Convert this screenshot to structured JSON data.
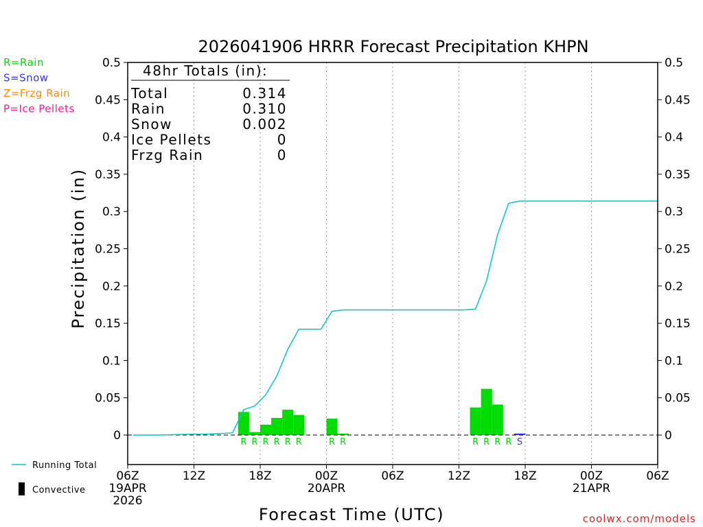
{
  "chart_data": {
    "type": "bar",
    "title": "2026041906 HRRR Forecast Precipitation KHPN",
    "ylabel": "Precipitation (in)",
    "xlabel": "Forecast Time (UTC)",
    "ylim": [
      -0.04,
      0.5
    ],
    "xlim_hours": [
      0,
      48
    ],
    "y_ticks": [
      0,
      0.05,
      0.1,
      0.15,
      0.2,
      0.25,
      0.3,
      0.35,
      0.4,
      0.45,
      0.5
    ],
    "y_tick_labels": [
      "0",
      "0.05",
      "0.1",
      "0.15",
      "0.2",
      "0.25",
      "0.3",
      "0.35",
      "0.4",
      "0.45",
      "0.5"
    ],
    "x_ticks": [
      {
        "hour": 0,
        "lines": [
          "06Z",
          "19APR",
          "2026"
        ]
      },
      {
        "hour": 6,
        "lines": [
          "12Z"
        ]
      },
      {
        "hour": 12,
        "lines": [
          "18Z"
        ]
      },
      {
        "hour": 18,
        "lines": [
          "00Z",
          "20APR"
        ]
      },
      {
        "hour": 24,
        "lines": [
          "06Z"
        ]
      },
      {
        "hour": 30,
        "lines": [
          "12Z"
        ]
      },
      {
        "hour": 36,
        "lines": [
          "18Z"
        ]
      },
      {
        "hour": 42,
        "lines": [
          "00Z",
          "21APR"
        ]
      },
      {
        "hour": 48,
        "lines": [
          "06Z"
        ]
      }
    ],
    "grid": "vertical-dotted",
    "legend": {
      "type_codes": [
        {
          "label": "R=Rain",
          "color": "#00dd00"
        },
        {
          "label": "S=Snow",
          "color": "#3333ff"
        },
        {
          "label": "Z=Frzg Rain",
          "color": "#ff8800"
        },
        {
          "label": "P=Ice Pellets",
          "color": "#ff1493"
        }
      ],
      "series": [
        {
          "label": "Running Total",
          "color": "#00c8c8",
          "style": "line"
        },
        {
          "label": "Convective",
          "color": "#000000",
          "style": "bar"
        }
      ]
    },
    "bars": [
      {
        "hour": 10,
        "value": 0.031,
        "type": "R",
        "color": "#00dd00"
      },
      {
        "hour": 11,
        "value": 0.004,
        "type": "R",
        "color": "#00dd00"
      },
      {
        "hour": 12,
        "value": 0.014,
        "type": "R",
        "color": "#00dd00"
      },
      {
        "hour": 13,
        "value": 0.023,
        "type": "R",
        "color": "#00dd00"
      },
      {
        "hour": 14,
        "value": 0.034,
        "type": "R",
        "color": "#00dd00"
      },
      {
        "hour": 15,
        "value": 0.027,
        "type": "R",
        "color": "#00dd00"
      },
      {
        "hour": 18,
        "value": 0.022,
        "type": "R",
        "color": "#00dd00"
      },
      {
        "hour": 19,
        "value": 0.002,
        "type": "R",
        "color": "#00dd00"
      },
      {
        "hour": 31,
        "value": 0.037,
        "type": "R",
        "color": "#00dd00"
      },
      {
        "hour": 32,
        "value": 0.062,
        "type": "R",
        "color": "#00dd00"
      },
      {
        "hour": 33,
        "value": 0.041,
        "type": "R",
        "color": "#00dd00"
      },
      {
        "hour": 34,
        "value": 0.0,
        "type": "R",
        "color": "#00dd00"
      },
      {
        "hour": 35,
        "value": 0.002,
        "type": "S",
        "color": "#3333ff"
      }
    ],
    "running_total": {
      "name": "Running Total",
      "color": "#00c8c8",
      "x": [
        0,
        1,
        2,
        3,
        4,
        5,
        6,
        7,
        8,
        9,
        10,
        11,
        12,
        13,
        14,
        15,
        16,
        17,
        18,
        19,
        20,
        21,
        22,
        23,
        24,
        25,
        26,
        27,
        28,
        29,
        30,
        31,
        32,
        33,
        34,
        35,
        36,
        37,
        38,
        39,
        40,
        41,
        42,
        43,
        44,
        45,
        46,
        47,
        48
      ],
      "y": [
        0,
        0,
        0,
        0.0003,
        0.0006,
        0.001,
        0.001,
        0.0015,
        0.002,
        0.003,
        0.034,
        0.039,
        0.054,
        0.079,
        0.115,
        0.142,
        0.142,
        0.142,
        0.166,
        0.168,
        0.168,
        0.168,
        0.168,
        0.168,
        0.168,
        0.168,
        0.168,
        0.168,
        0.168,
        0.168,
        0.168,
        0.169,
        0.207,
        0.269,
        0.311,
        0.314,
        0.314,
        0.314,
        0.314,
        0.314,
        0.314,
        0.314,
        0.314,
        0.314,
        0.314,
        0.314,
        0.314,
        0.314,
        0.314
      ]
    },
    "totals_box": {
      "header": "48hr Totals (in):",
      "rows": [
        {
          "label": "Total",
          "value": "0.314"
        },
        {
          "label": "Rain",
          "value": "0.310"
        },
        {
          "label": "Snow",
          "value": "0.002"
        },
        {
          "label": "Ice Pellets",
          "value": "0"
        },
        {
          "label": "Frzg Rain",
          "value": "0"
        }
      ]
    },
    "credit": "coolwx.com/models"
  }
}
